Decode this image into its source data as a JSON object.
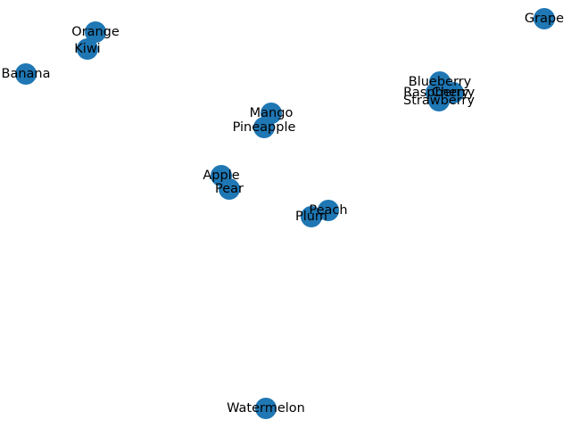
{
  "node_color": "#1f77b4",
  "label_color": "#000000",
  "nodes": [
    {
      "id": "orange",
      "label": "Orange"
    },
    {
      "id": "kiwi",
      "label": "Kiwi"
    },
    {
      "id": "banana",
      "label": "Banana"
    },
    {
      "id": "grape",
      "label": "Grape"
    },
    {
      "id": "blueberry",
      "label": "Blueberry"
    },
    {
      "id": "raspberry",
      "label": "Raspberry"
    },
    {
      "id": "cherry",
      "label": "Cherry"
    },
    {
      "id": "strawberry",
      "label": "Strawberry"
    },
    {
      "id": "mango",
      "label": "Mango"
    },
    {
      "id": "pineapple",
      "label": "Pineapple"
    },
    {
      "id": "apple",
      "label": "Apple"
    },
    {
      "id": "pear",
      "label": "Pear"
    },
    {
      "id": "peach",
      "label": "Peach"
    },
    {
      "id": "plum",
      "label": "Plum"
    },
    {
      "id": "watermelon",
      "label": "Watermelon"
    }
  ]
}
